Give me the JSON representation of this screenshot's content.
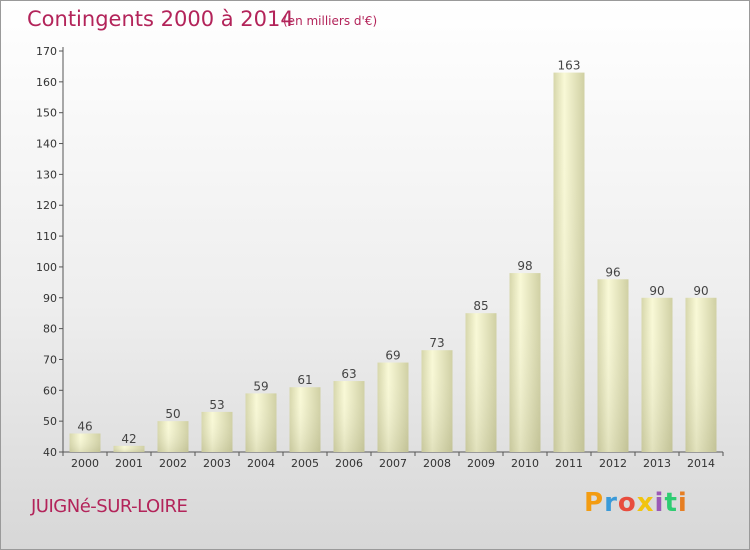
{
  "header": {
    "title": "Contingents 2000 à 2014",
    "subtitle": "(en milliers d'€)"
  },
  "footer": {
    "commune": "JUIGNé-SUR-LOIRE",
    "logo_letters": [
      "P",
      "r",
      "o",
      "x",
      "i",
      "t",
      "i"
    ],
    "logo_colors": [
      "#f39c12",
      "#3a9ad9",
      "#e84c3d",
      "#f1c40f",
      "#9b59b6",
      "#2ecc71",
      "#e67e22"
    ]
  },
  "chart_data": {
    "type": "bar",
    "categories": [
      "2000",
      "2001",
      "2002",
      "2003",
      "2004",
      "2005",
      "2006",
      "2007",
      "2008",
      "2009",
      "2010",
      "2011",
      "2012",
      "2013",
      "2014"
    ],
    "values": [
      46,
      42,
      50,
      53,
      59,
      61,
      63,
      69,
      73,
      85,
      98,
      163,
      96,
      90,
      90
    ],
    "title": "Contingents 2000 à 2014",
    "subtitle": "(en milliers d'€)",
    "xlabel": "",
    "ylabel": "",
    "ylim": [
      40,
      170
    ],
    "yticks": [
      40,
      50,
      60,
      70,
      80,
      90,
      100,
      110,
      120,
      130,
      140,
      150,
      160,
      170
    ],
    "grid": false,
    "bar_color": "#f5f5c8"
  }
}
